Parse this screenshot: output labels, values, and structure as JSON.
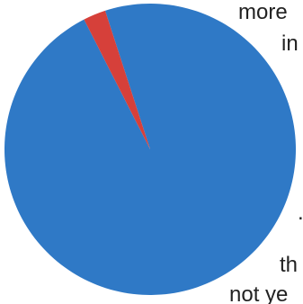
{
  "chart_data": {
    "type": "pie",
    "title": "",
    "slices": [
      {
        "value": 97.5,
        "color": "#2f79c6"
      },
      {
        "value": 2.5,
        "color": "#d6403a"
      }
    ]
  },
  "text_fragments": [
    {
      "text": "more"
    },
    {
      "text": "in"
    },
    {
      "text": "."
    },
    {
      "text": "th"
    },
    {
      "text": "not ye"
    }
  ],
  "colors": {
    "background": "#ffffff",
    "slice_blue": "#2f79c6",
    "slice_red": "#d6403a",
    "text": "#222222"
  }
}
